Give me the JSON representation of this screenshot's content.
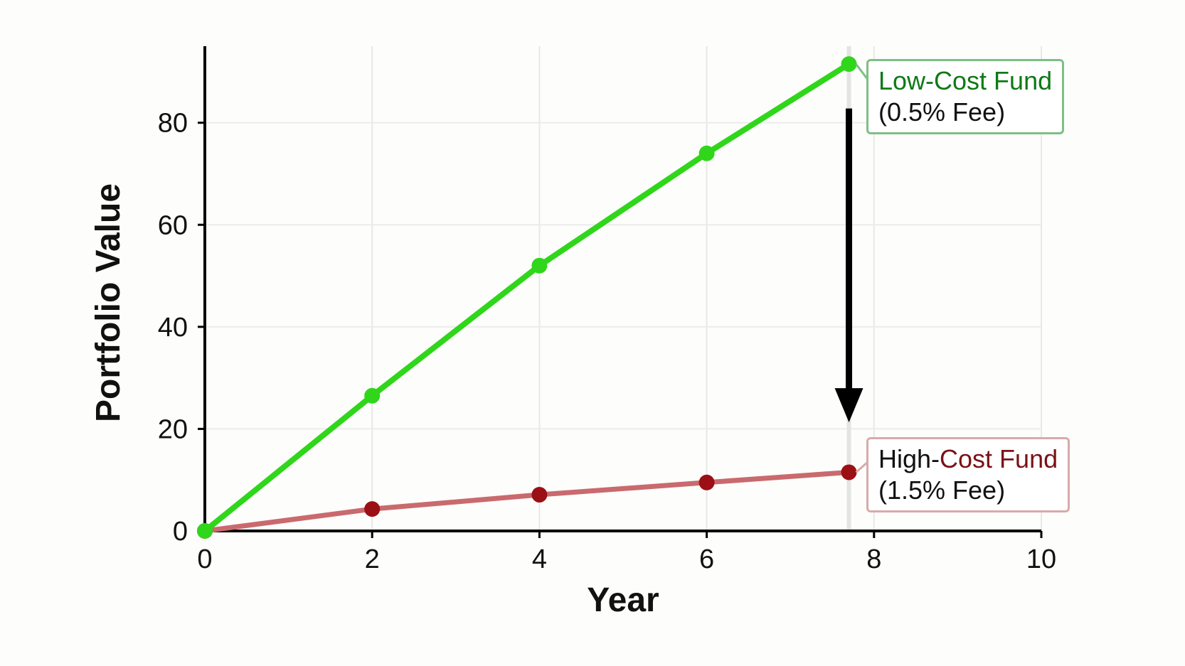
{
  "chart_data": {
    "type": "line",
    "xlabel": "Year",
    "ylabel": "Portfolio Value",
    "xlim": [
      0,
      10
    ],
    "ylim": [
      0,
      95
    ],
    "xticks": [
      0,
      2,
      4,
      6,
      8,
      10
    ],
    "yticks": [
      0,
      20,
      40,
      60,
      80
    ],
    "grid": true,
    "series": [
      {
        "name": "Low-Cost Fund (0.5% Fee)",
        "color": "#2fd61a",
        "x": [
          0,
          2,
          4,
          6,
          7.7
        ],
        "y": [
          0,
          26.5,
          52,
          74,
          91.5
        ]
      },
      {
        "name": "High-Cost Fund (1.5% Fee)",
        "color": "#c96a6e",
        "marker_color": "#9b1015",
        "x": [
          0,
          2,
          4,
          6,
          7.7
        ],
        "y": [
          0,
          4.3,
          7.1,
          9.5,
          11.5
        ]
      }
    ],
    "annotations": [
      {
        "type": "arrow",
        "x": 7.7,
        "from_y": 80,
        "to_y": 22,
        "color": "#000000"
      }
    ]
  },
  "labels": {
    "low_cost": {
      "line1": "Low-Cost Fund",
      "line2": "(0.5% Fee)",
      "text_color": "#0e7a16",
      "border_color": "#7dbf86"
    },
    "high_cost": {
      "line1_a": "High-",
      "line1_b": "Cost Fund",
      "line2": "(1.5% Fee)",
      "text_color": "#7a1116",
      "border_color": "#d9aaaa"
    }
  }
}
